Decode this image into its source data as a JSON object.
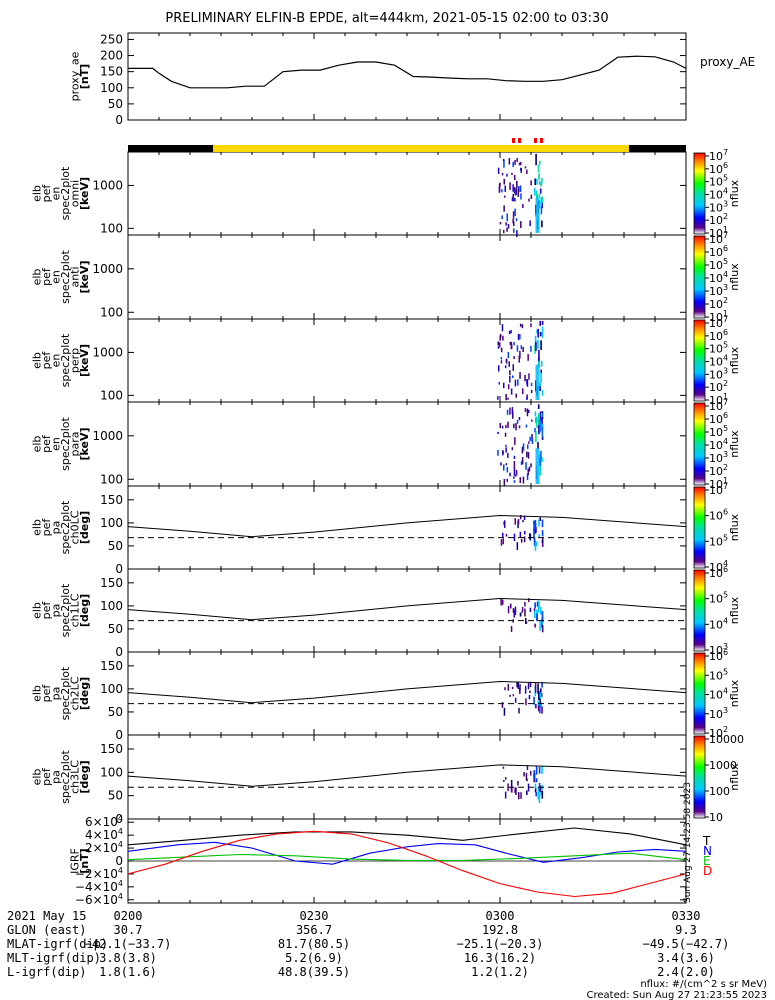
{
  "title": "PRELIMINARY ELFIN-B EPDE, alt=444km, 2021-05-15 02:00 to 03:30",
  "chart_data": [
    {
      "type": "line",
      "ylabel": [
        "proxy_ae",
        "[nT]"
      ],
      "yticks": [
        "0",
        "50",
        "100",
        "150",
        "200",
        "250"
      ],
      "ylim": [
        0,
        270
      ],
      "series": [
        {
          "name": "proxy_AE",
          "x": [
            0,
            3,
            4,
            5,
            7,
            10,
            13,
            16,
            19,
            22,
            25,
            28,
            31,
            34,
            37,
            40,
            43,
            46,
            49,
            52,
            55,
            58,
            61,
            64,
            67,
            70,
            73,
            76,
            79,
            82,
            85,
            88,
            90
          ],
          "y": [
            160,
            160,
            160,
            145,
            120,
            100,
            100,
            100,
            105,
            105,
            150,
            155,
            155,
            170,
            180,
            180,
            170,
            135,
            133,
            130,
            128,
            128,
            122,
            120,
            120,
            125,
            140,
            155,
            195,
            198,
            196,
            180,
            160
          ]
        }
      ]
    },
    {
      "type": "heatmap",
      "ylabel": [
        "elb",
        "pef",
        "en",
        "spec2plot",
        "omni",
        "[keV]"
      ],
      "yticks": [
        "100",
        "1000"
      ],
      "colorbar_label": "nflux",
      "colorbar_ticks": [
        "10^1",
        "10^2",
        "10^3",
        "10^4",
        "10^5",
        "10^6",
        "10^7"
      ]
    },
    {
      "type": "heatmap",
      "ylabel": [
        "elb",
        "pef",
        "en",
        "spec2plot",
        "anti",
        "[keV]"
      ],
      "yticks": [
        "100",
        "1000"
      ],
      "colorbar_label": "nflux",
      "colorbar_ticks": [
        "10^1",
        "10^2",
        "10^3",
        "10^4",
        "10^5",
        "10^6",
        "10^7"
      ]
    },
    {
      "type": "heatmap",
      "ylabel": [
        "elb",
        "pef",
        "en",
        "spec2plot",
        "perp",
        "[keV]"
      ],
      "yticks": [
        "100",
        "1000"
      ],
      "colorbar_label": "nflux",
      "colorbar_ticks": [
        "10^1",
        "10^2",
        "10^3",
        "10^4",
        "10^5",
        "10^6",
        "10^7"
      ]
    },
    {
      "type": "heatmap",
      "ylabel": [
        "elb",
        "pef",
        "en",
        "spec2plot",
        "para",
        "[keV]"
      ],
      "yticks": [
        "100",
        "1000"
      ],
      "colorbar_label": "nflux",
      "colorbar_ticks": [
        "10^1",
        "10^2",
        "10^3",
        "10^4",
        "10^5",
        "10^6",
        "10^7"
      ]
    },
    {
      "type": "line",
      "ylabel": [
        "elb",
        "pef",
        "pa",
        "spec2plot",
        "ch0LC",
        "[deg]"
      ],
      "yticks": [
        "0",
        "50",
        "100",
        "150"
      ],
      "ylim": [
        0,
        180
      ],
      "colorbar_label": "nflux",
      "colorbar_ticks": [
        "10^4",
        "10^5",
        "10^6",
        "10^7"
      ]
    },
    {
      "type": "line",
      "ylabel": [
        "elb",
        "pef",
        "pa",
        "spec2plot",
        "ch1LC",
        "[deg]"
      ],
      "yticks": [
        "0",
        "50",
        "100",
        "150"
      ],
      "ylim": [
        0,
        180
      ],
      "colorbar_label": "nflux",
      "colorbar_ticks": [
        "10^3",
        "10^4",
        "10^5",
        "10^6"
      ]
    },
    {
      "type": "line",
      "ylabel": [
        "elb",
        "pef",
        "pa",
        "spec2plot",
        "ch2LC",
        "[deg]"
      ],
      "yticks": [
        "0",
        "50",
        "100",
        "150"
      ],
      "ylim": [
        0,
        180
      ],
      "colorbar_label": "nflux",
      "colorbar_ticks": [
        "10^2",
        "10^3",
        "10^4",
        "10^5",
        "10^6"
      ]
    },
    {
      "type": "line",
      "ylabel": [
        "elb",
        "pef",
        "pa",
        "spec2plot",
        "ch3LC",
        "[deg]"
      ],
      "yticks": [
        "0",
        "50",
        "100",
        "150"
      ],
      "ylim": [
        0,
        180
      ],
      "colorbar_label": "nflux",
      "colorbar_ticks": [
        "10",
        "100",
        "1000",
        "10000"
      ]
    },
    {
      "type": "line",
      "ylabel": [
        "IGRF",
        "[nT]"
      ],
      "yticks": [
        "−6×10^4",
        "−4×10^4",
        "−2×10^4",
        "0",
        "2×10^4",
        "4×10^4",
        "6×10^4"
      ],
      "ylim": [
        -65000,
        65000
      ],
      "legend": [
        "T",
        "N",
        "E",
        "D"
      ],
      "stamp": "Sun Aug 27 14:23:58 2023",
      "series": [
        {
          "name": "T",
          "color": "#000000",
          "x": [
            0,
            9,
            18,
            27,
            36,
            45,
            54,
            63,
            72,
            81,
            90
          ],
          "y": [
            25000,
            32000,
            40000,
            45000,
            45000,
            40000,
            32000,
            42000,
            51000,
            42000,
            25000
          ]
        },
        {
          "name": "N",
          "color": "#0000ff",
          "x": [
            0,
            8,
            14,
            20,
            27,
            33,
            39,
            45,
            50,
            56,
            61,
            67,
            73,
            79,
            85,
            90
          ],
          "y": [
            15000,
            25000,
            29000,
            20000,
            0,
            -5000,
            12000,
            22000,
            27000,
            25000,
            12000,
            -2000,
            5000,
            14000,
            18000,
            15000
          ]
        },
        {
          "name": "E",
          "color": "#00c000",
          "x": [
            0,
            9,
            18,
            27,
            36,
            45,
            54,
            63,
            72,
            81,
            90
          ],
          "y": [
            2000,
            6000,
            10000,
            8000,
            3000,
            1000,
            1000,
            4000,
            8000,
            12000,
            2000
          ]
        },
        {
          "name": "D",
          "color": "#ff0000",
          "x": [
            0,
            6,
            12,
            18,
            24,
            30,
            36,
            42,
            48,
            54,
            60,
            66,
            72,
            78,
            84,
            90
          ],
          "y": [
            -20000,
            -5000,
            15000,
            32000,
            42000,
            46000,
            42000,
            28000,
            8000,
            -15000,
            -35000,
            -48000,
            -55000,
            -50000,
            -35000,
            -20000
          ]
        }
      ]
    }
  ],
  "bottom_axis": {
    "time_ticks": [
      "0200",
      "0230",
      "0300",
      "0330"
    ],
    "rows": [
      {
        "label": "2021 May 15",
        "values": [
          "0200",
          "0230",
          "0300",
          "0330"
        ]
      },
      {
        "label": "GLON (east)",
        "values": [
          "30.7",
          "356.7",
          "192.8",
          "9.3"
        ]
      },
      {
        "label": "MLAT-igrf(dip)",
        "values": [
          "−42.1(−33.7)",
          "81.7(80.5)",
          "−25.1(−20.3)",
          "−49.5(−42.7)"
        ]
      },
      {
        "label": "MLT-igrf(dip)",
        "values": [
          "3.8(3.8)",
          "5.2(6.9)",
          "16.3(16.2)",
          "3.4(3.6)"
        ]
      },
      {
        "label": "L-igrf(dip)",
        "values": [
          "1.8(1.6)",
          "48.8(39.5)",
          "1.2(1.2)",
          "2.4(2.0)"
        ]
      }
    ]
  },
  "footer": {
    "units": "nflux: #/(cm^2 s sr MeV)",
    "created": "Created: Sun Aug 27 21:23:55 2023"
  }
}
